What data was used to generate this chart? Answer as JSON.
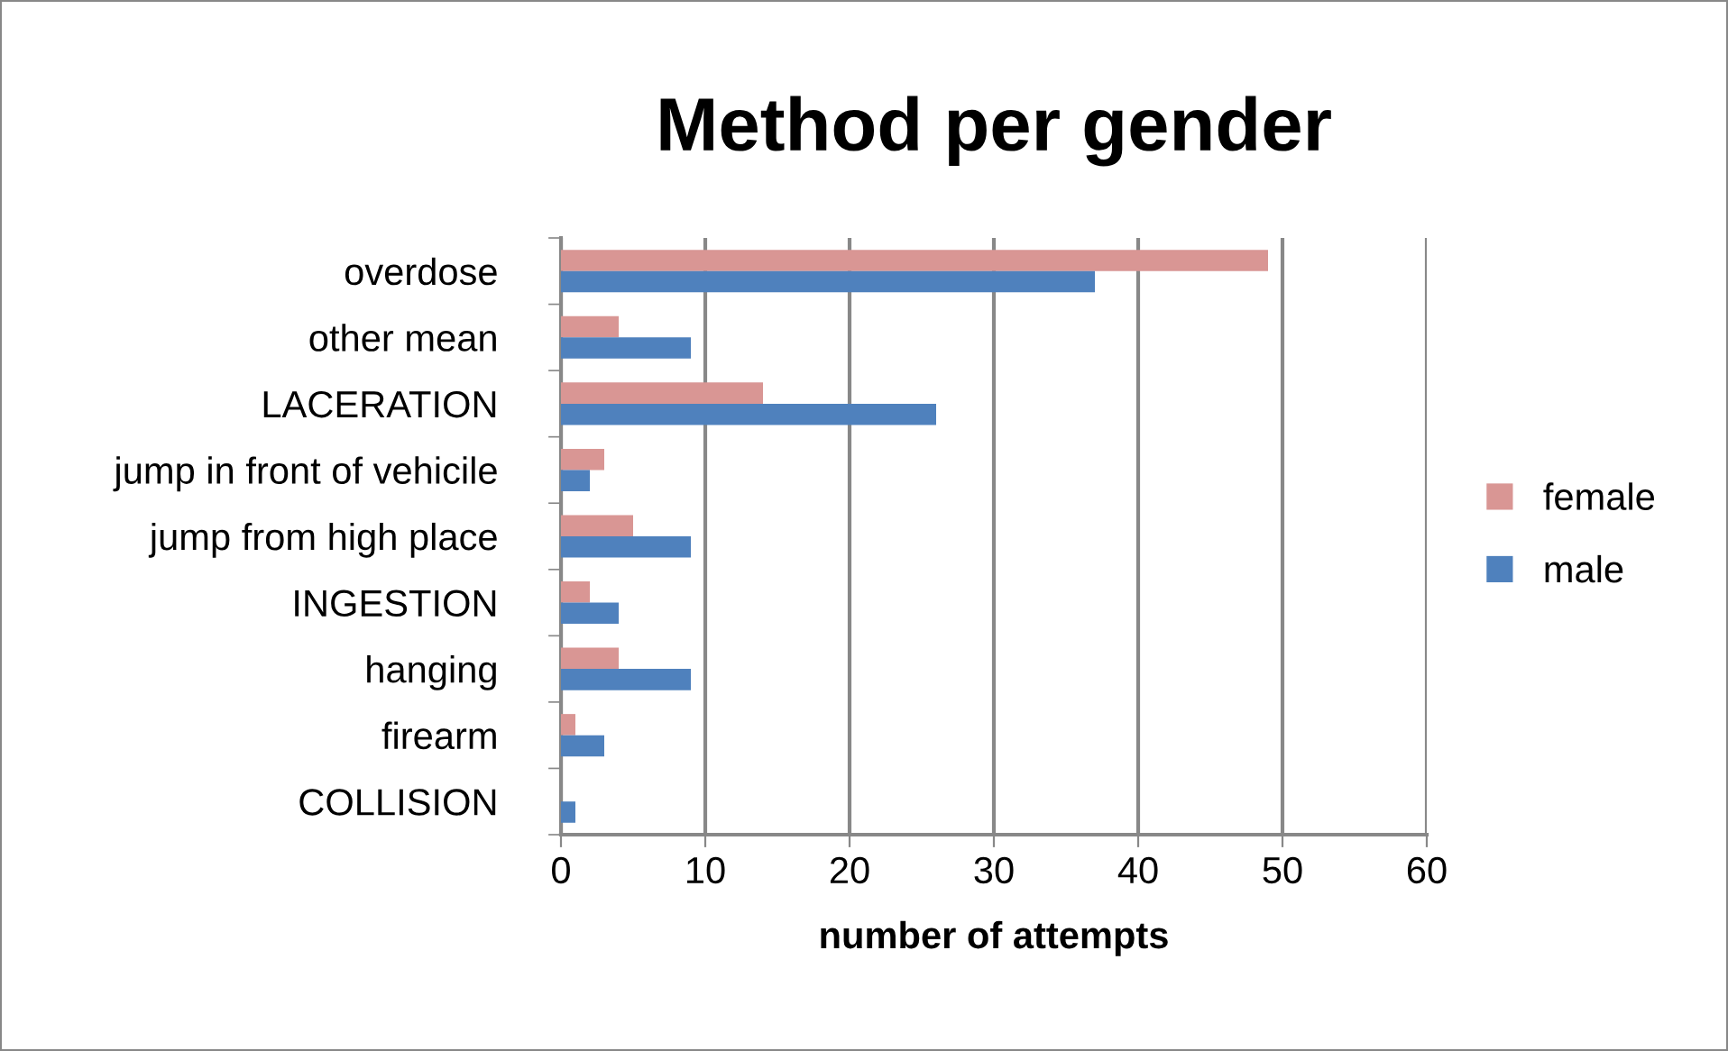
{
  "chart_data": {
    "type": "bar",
    "orientation": "horizontal",
    "title": "Method per gender",
    "xlabel": "number of attempts",
    "categories": [
      "overdose",
      "other mean",
      "LACERATION",
      "jump in front of vehicile",
      "jump from high place",
      "INGESTION",
      "hanging",
      "firearm",
      "COLLISION"
    ],
    "series": [
      {
        "name": "female",
        "color": "#d99694",
        "values": [
          49,
          4,
          14,
          3,
          5,
          2,
          4,
          1,
          0
        ]
      },
      {
        "name": "male",
        "color": "#4f81bd",
        "values": [
          37,
          9,
          26,
          2,
          9,
          4,
          9,
          3,
          1
        ]
      }
    ],
    "xlim": [
      0,
      60
    ],
    "xticks": [
      0,
      10,
      20,
      30,
      40,
      50,
      60
    ],
    "grid": "x",
    "legend": "right"
  }
}
